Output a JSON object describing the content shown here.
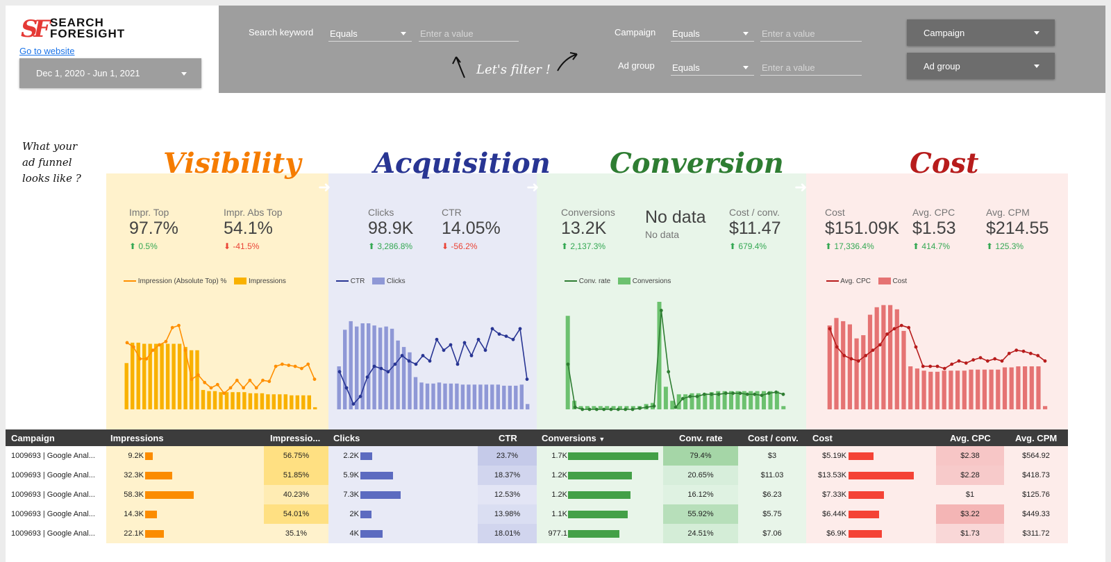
{
  "header": {
    "logo_mark": "SF",
    "logo_line1": "SEARCH",
    "logo_line2": "FORESIGHT",
    "goto_link": "Go to website",
    "date_range": "Dec 1, 2020 - Jun 1, 2021"
  },
  "filters": {
    "search_keyword_label": "Search keyword",
    "campaign_label": "Campaign",
    "ad_group_label": "Ad group",
    "operator": "Equals",
    "value_placeholder": "Enter a value",
    "campaign_dropdown": "Campaign",
    "ad_group_dropdown": "Ad group",
    "annotation": "Let's filter !"
  },
  "funnel_note": [
    "What your",
    "ad funnel",
    "looks like ?"
  ],
  "stages": [
    {
      "title": "Visibility",
      "kpis": [
        {
          "label": "Impr. Top",
          "value": "97.7%",
          "delta": "0.5%",
          "dir": "up"
        },
        {
          "label": "Impr. Abs Top",
          "value": "54.1%",
          "delta": "-41.5%",
          "dir": "down"
        }
      ],
      "legend": [
        "Impression (Absolute Top) %",
        "Impressions"
      ]
    },
    {
      "title": "Acquisition",
      "kpis": [
        {
          "label": "Clicks",
          "value": "98.9K",
          "delta": "3,286.8%",
          "dir": "up"
        },
        {
          "label": "CTR",
          "value": "14.05%",
          "delta": "-56.2%",
          "dir": "down"
        }
      ],
      "legend": [
        "CTR",
        "Clicks"
      ]
    },
    {
      "title": "Conversion",
      "kpis": [
        {
          "label": "Conversions",
          "value": "13.2K",
          "delta": "2,137.3%",
          "dir": "up"
        },
        {
          "label": "",
          "value": "No data",
          "delta": "No data",
          "dir": "none"
        },
        {
          "label": "Cost / conv.",
          "value": "$11.47",
          "delta": "679.4%",
          "dir": "up"
        }
      ],
      "legend": [
        "Conv. rate",
        "Conversions"
      ]
    },
    {
      "title": "Cost",
      "kpis": [
        {
          "label": "Cost",
          "value": "$151.09K",
          "delta": "17,336.4%",
          "dir": "up"
        },
        {
          "label": "Avg. CPC",
          "value": "$1.53",
          "delta": "414.7%",
          "dir": "up"
        },
        {
          "label": "Avg. CPM",
          "value": "$214.55",
          "delta": "125.3%",
          "dir": "up"
        }
      ],
      "legend": [
        "Avg. CPC",
        "Cost"
      ]
    }
  ],
  "chart_data": [
    {
      "type": "bar",
      "title": "",
      "series": [
        {
          "name": "Impressions",
          "kind": "bar",
          "values": [
            43,
            62,
            62,
            61,
            61,
            61,
            61,
            61,
            61,
            61,
            58,
            55,
            55,
            18,
            17,
            17,
            16,
            16,
            16,
            16,
            16,
            15,
            15,
            15,
            14,
            14,
            14,
            14,
            13,
            13,
            13,
            13,
            2
          ]
        },
        {
          "name": "Impression (Absolute Top) %",
          "kind": "line",
          "values": [
            62,
            58,
            47,
            47,
            55,
            60,
            63,
            76,
            78,
            55,
            28,
            32,
            25,
            20,
            23,
            15,
            20,
            27,
            20,
            27,
            20,
            27,
            26,
            40,
            42,
            41,
            40,
            38,
            42,
            28
          ]
        }
      ],
      "colors": {
        "bar": "#f9b100",
        "line": "#ff8f00"
      }
    },
    {
      "type": "bar",
      "title": "",
      "series": [
        {
          "name": "Clicks",
          "kind": "bar",
          "values": [
            40,
            74,
            82,
            77,
            80,
            80,
            78,
            76,
            77,
            75,
            64,
            58,
            53,
            30,
            25,
            24,
            24,
            25,
            24,
            24,
            24,
            23,
            23,
            23,
            23,
            23,
            23,
            23,
            22,
            22,
            22,
            23,
            5
          ]
        },
        {
          "name": "CTR",
          "kind": "line",
          "values": [
            35,
            20,
            5,
            12,
            30,
            40,
            38,
            35,
            42,
            50,
            45,
            42,
            50,
            45,
            65,
            55,
            60,
            42,
            62,
            50,
            65,
            55,
            75,
            70,
            68,
            65,
            75,
            28
          ]
        }
      ],
      "colors": {
        "bar": "#8f98d6",
        "line": "#283593"
      }
    },
    {
      "type": "bar",
      "title": "",
      "series": [
        {
          "name": "Conversions",
          "kind": "bar",
          "values": [
            87,
            8,
            3,
            3,
            3,
            3,
            3,
            3,
            3,
            3,
            3,
            3,
            5,
            6,
            100,
            21,
            8,
            14,
            14,
            15,
            15,
            15,
            16,
            17,
            17,
            17,
            17,
            17,
            17,
            17,
            17,
            17,
            17,
            3
          ]
        },
        {
          "name": "Conv. rate",
          "kind": "line",
          "values": [
            42,
            2,
            0,
            0,
            0,
            0,
            0,
            0,
            0,
            0,
            1,
            2,
            3,
            92,
            35,
            2,
            10,
            12,
            12,
            14,
            14,
            14,
            15,
            15,
            15,
            14,
            14,
            13,
            15,
            16,
            14
          ]
        }
      ],
      "colors": {
        "bar": "#6cc16f",
        "line": "#2e7d32"
      }
    },
    {
      "type": "bar",
      "title": "",
      "series": [
        {
          "name": "Cost",
          "kind": "bar",
          "values": [
            78,
            85,
            82,
            79,
            66,
            69,
            88,
            95,
            97,
            97,
            93,
            73,
            40,
            38,
            36,
            35,
            35,
            36,
            36,
            36,
            36,
            37,
            37,
            37,
            37,
            37,
            39,
            39,
            40,
            40,
            40,
            40,
            3
          ]
        },
        {
          "name": "Avg. CPC",
          "kind": "line",
          "values": [
            75,
            58,
            50,
            47,
            45,
            50,
            55,
            60,
            70,
            75,
            78,
            76,
            58,
            40,
            40,
            40,
            38,
            42,
            45,
            43,
            46,
            48,
            45,
            47,
            45,
            52,
            55,
            54,
            52,
            50,
            45
          ]
        }
      ],
      "colors": {
        "bar": "#e57373",
        "line": "#b71c1c"
      }
    }
  ],
  "table": {
    "headers": [
      "Campaign",
      "Impressions",
      "Impressio...",
      "Clicks",
      "CTR",
      "Conversions",
      "Conv. rate",
      "Cost / conv.",
      "Cost",
      "Avg. CPC",
      "Avg. CPM"
    ],
    "sort_column": "Conversions",
    "rows": [
      {
        "campaign": "1009693 | Google Anal...",
        "impressions": "9.2K",
        "impr_pct": "56.75%",
        "clicks": "2.2K",
        "ctr": "23.7%",
        "conversions": "1.7K",
        "conv_rate": "79.4%",
        "cost_per_conv": "$3",
        "cost": "$5.19K",
        "avg_cpc": "$2.38",
        "avg_cpm": "$564.92",
        "impr_frac": 0.16,
        "clicks_frac": 0.19,
        "conv_frac": 1.0,
        "cost_frac": 0.38
      },
      {
        "campaign": "1009693 | Google Anal...",
        "impressions": "32.3K",
        "impr_pct": "51.85%",
        "clicks": "5.9K",
        "ctr": "18.37%",
        "conversions": "1.2K",
        "conv_rate": "20.65%",
        "cost_per_conv": "$11.03",
        "cost": "$13.53K",
        "avg_cpc": "$2.28",
        "avg_cpm": "$418.73",
        "impr_frac": 0.55,
        "clicks_frac": 0.51,
        "conv_frac": 0.71,
        "cost_frac": 1.0
      },
      {
        "campaign": "1009693 | Google Anal...",
        "impressions": "58.3K",
        "impr_pct": "40.23%",
        "clicks": "7.3K",
        "ctr": "12.53%",
        "conversions": "1.2K",
        "conv_rate": "16.12%",
        "cost_per_conv": "$6.23",
        "cost": "$7.33K",
        "avg_cpc": "$1",
        "avg_cpm": "$125.76",
        "impr_frac": 1.0,
        "clicks_frac": 0.63,
        "conv_frac": 0.69,
        "cost_frac": 0.54
      },
      {
        "campaign": "1009693 | Google Anal...",
        "impressions": "14.3K",
        "impr_pct": "54.01%",
        "clicks": "2K",
        "ctr": "13.98%",
        "conversions": "1.1K",
        "conv_rate": "55.92%",
        "cost_per_conv": "$5.75",
        "cost": "$6.44K",
        "avg_cpc": "$3.22",
        "avg_cpm": "$449.33",
        "impr_frac": 0.24,
        "clicks_frac": 0.17,
        "conv_frac": 0.66,
        "cost_frac": 0.47
      },
      {
        "campaign": "1009693 | Google Anal...",
        "impressions": "22.1K",
        "impr_pct": "35.1%",
        "clicks": "4K",
        "ctr": "18.01%",
        "conversions": "977.1",
        "conv_rate": "24.51%",
        "cost_per_conv": "$7.06",
        "cost": "$6.9K",
        "avg_cpc": "$1.73",
        "avg_cpm": "$311.72",
        "impr_frac": 0.38,
        "clicks_frac": 0.35,
        "conv_frac": 0.57,
        "cost_frac": 0.51
      }
    ]
  }
}
